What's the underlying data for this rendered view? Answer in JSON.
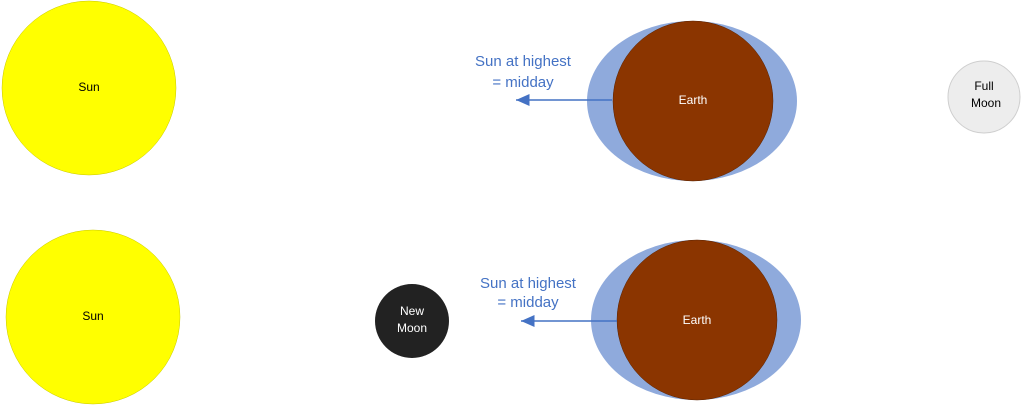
{
  "panels": [
    {
      "sun": "Sun",
      "earth": "Earth",
      "moon": [
        "Full",
        "Moon"
      ],
      "annotation": [
        "Sun at highest",
        "= midday"
      ]
    },
    {
      "sun": "Sun",
      "earth": "Earth",
      "moon": [
        "New",
        "Moon"
      ],
      "annotation": [
        "Sun at highest",
        "= midday"
      ]
    }
  ]
}
